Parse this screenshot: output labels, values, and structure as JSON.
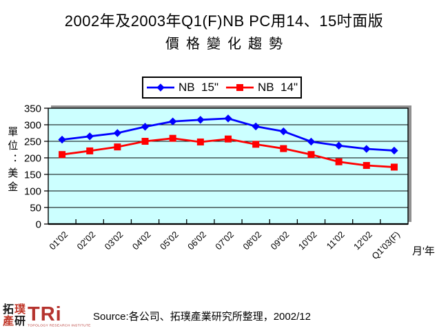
{
  "title": {
    "line1": "2002年及2003年Q1(F)NB PC用14、15吋面版",
    "line2": "價格變化趨勢"
  },
  "chart_data": {
    "type": "line",
    "categories": [
      "01'02",
      "02'02",
      "03'02",
      "04'02",
      "05'02",
      "06'02",
      "07'02",
      "08'02",
      "09'02",
      "10'02",
      "11'02",
      "12'02",
      "Q1'03(F)"
    ],
    "series": [
      {
        "name": "NB  15\"",
        "color": "#0000FF",
        "marker": "diamond",
        "values": [
          255,
          265,
          275,
          294,
          310,
          315,
          319,
          295,
          280,
          249,
          237,
          227,
          222
        ]
      },
      {
        "name": "NB  14\"",
        "color": "#FF0000",
        "marker": "square",
        "values": [
          210,
          221,
          233,
          250,
          259,
          248,
          257,
          241,
          228,
          210,
          188,
          177,
          172
        ]
      }
    ],
    "title": "2002年及2003年Q1(F)NB PC用14、15吋面版 價格變化趨勢",
    "xlabel": "月'年",
    "ylabel": "單位：美金",
    "ylim": [
      0,
      350
    ],
    "ytick_step": 50,
    "grid": true,
    "legend_position": "top",
    "plot_bg": "#CCFFFF",
    "shadow_color": "#909090"
  },
  "source": {
    "text": "Source:各公司、拓璞產業研究所整理，2002/12"
  },
  "logo": {
    "chars": [
      "拓",
      "璞",
      "產",
      "研"
    ],
    "acronym": "TRi",
    "subtitle": "TOPOLOGY RESEARCH INSTITUTE"
  }
}
